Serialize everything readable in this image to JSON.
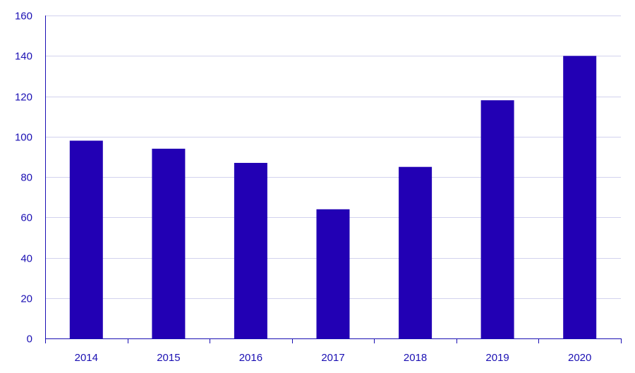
{
  "chart_data": {
    "type": "bar",
    "title": "",
    "xlabel": "",
    "ylabel": "",
    "categories": [
      "2014",
      "2015",
      "2016",
      "2017",
      "2018",
      "2019",
      "2020"
    ],
    "values": [
      98,
      94,
      87,
      64,
      85,
      118,
      140
    ],
    "ylim": [
      0,
      160
    ],
    "yticks": [
      0,
      20,
      40,
      60,
      80,
      100,
      120,
      140,
      160
    ],
    "ytick_labels": [
      "0",
      "20",
      "40",
      "60",
      "80",
      "100",
      "120",
      "140",
      "160"
    ],
    "grid": true,
    "bar_color": "#2200b4",
    "axis_color": "#1a0fb3",
    "grid_color": "#d2d2ee"
  }
}
